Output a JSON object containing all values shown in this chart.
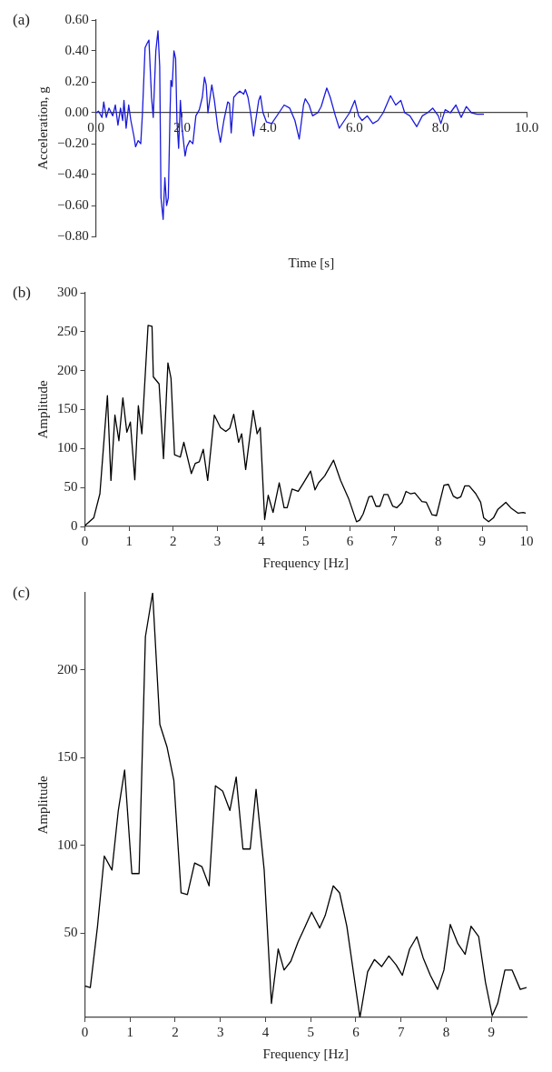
{
  "chart_data": [
    {
      "type": "line",
      "title": "(a)",
      "xlabel": "Time [s]",
      "ylabel": "Acceleration, g",
      "grid": false,
      "legend": false,
      "marker": "none",
      "line_style": "solid",
      "xlim": [
        0,
        10
      ],
      "ylim": [
        -0.8,
        0.6
      ],
      "xticks": [
        {
          "value": 0,
          "label": "0.0"
        },
        {
          "value": 2,
          "label": "2.0"
        },
        {
          "value": 4,
          "label": "4.0"
        },
        {
          "value": 6,
          "label": "6.0"
        },
        {
          "value": 8,
          "label": "8.0"
        },
        {
          "value": 10,
          "label": "10.0"
        }
      ],
      "yticks": [
        {
          "value": -0.8,
          "label": "−0.80"
        },
        {
          "value": -0.6,
          "label": "−0.60"
        },
        {
          "value": -0.4,
          "label": "−0.40"
        },
        {
          "value": -0.2,
          "label": "−0.20"
        },
        {
          "value": 0,
          "label": "0.00"
        },
        {
          "value": 0.2,
          "label": "0.20"
        },
        {
          "value": 0.4,
          "label": "0.40"
        },
        {
          "value": 0.6,
          "label": "0.60"
        }
      ],
      "x": [
        0,
        0.06,
        0.14,
        0.18,
        0.24,
        0.3,
        0.39,
        0.45,
        0.51,
        0.57,
        0.62,
        0.65,
        0.7,
        0.76,
        0.81,
        0.88,
        0.92,
        0.98,
        1.04,
        1.08,
        1.14,
        1.19,
        1.23,
        1.29,
        1.33,
        1.39,
        1.44,
        1.48,
        1.51,
        1.56,
        1.6,
        1.64,
        1.68,
        1.72,
        1.74,
        1.77,
        1.81,
        1.85,
        1.88,
        1.92,
        1.96,
        2.0,
        2.07,
        2.11,
        2.18,
        2.25,
        2.32,
        2.4,
        2.47,
        2.52,
        2.56,
        2.6,
        2.69,
        2.75,
        2.83,
        2.89,
        2.97,
        3.06,
        3.1,
        3.14,
        3.2,
        3.26,
        3.34,
        3.43,
        3.47,
        3.53,
        3.59,
        3.66,
        3.71,
        3.78,
        3.82,
        3.88,
        3.96,
        4.08,
        4.25,
        4.37,
        4.5,
        4.62,
        4.72,
        4.82,
        4.86,
        4.95,
        5.03,
        5.15,
        5.23,
        5.36,
        5.44,
        5.56,
        5.65,
        5.77,
        5.89,
        6.01,
        6.1,
        6.18,
        6.3,
        6.43,
        6.55,
        6.67,
        6.84,
        6.96,
        7.08,
        7.17,
        7.29,
        7.45,
        7.58,
        7.7,
        7.82,
        7.95,
        8.01,
        8.11,
        8.23,
        8.36,
        8.48,
        8.6,
        8.72,
        8.85,
        9.01
      ],
      "series": [
        {
          "color": "#1a1adc",
          "values": [
            0,
            0.01,
            -0.03,
            0.07,
            -0.03,
            0.03,
            -0.02,
            0.05,
            -0.08,
            0.03,
            -0.05,
            0.08,
            -0.1,
            0.05,
            -0.05,
            -0.15,
            -0.22,
            -0.18,
            -0.2,
            0,
            0.42,
            0.45,
            0.47,
            0.1,
            -0.03,
            0.4,
            0.53,
            0.3,
            -0.55,
            -0.69,
            -0.42,
            -0.6,
            -0.55,
            0,
            0.21,
            0.17,
            0.4,
            0.35,
            -0.05,
            -0.23,
            0.08,
            -0.1,
            -0.28,
            -0.22,
            -0.18,
            -0.2,
            -0.02,
            0.02,
            0.1,
            0.23,
            0.18,
            0,
            0.18,
            0.08,
            -0.1,
            -0.19,
            -0.05,
            0.07,
            0.06,
            -0.13,
            0.1,
            0.12,
            0.14,
            0.12,
            0.15,
            0.1,
            0,
            -0.15,
            -0.05,
            0.08,
            0.11,
            0,
            -0.06,
            -0.07,
            0,
            0.05,
            0.03,
            -0.05,
            -0.17,
            0.05,
            0.09,
            0.05,
            -0.02,
            0,
            0.04,
            0.16,
            0.1,
            -0.02,
            -0.1,
            -0.05,
            0,
            0.08,
            -0.02,
            -0.05,
            -0.02,
            -0.07,
            -0.05,
            0,
            0.11,
            0.05,
            0.08,
            0,
            -0.02,
            -0.09,
            -0.02,
            0,
            0.03,
            -0.02,
            -0.07,
            0.02,
            0,
            0.05,
            -0.03,
            0.04,
            0,
            -0.01,
            -0.01
          ]
        }
      ]
    },
    {
      "type": "line",
      "title": "(b)",
      "xlabel": "Frequency [Hz]",
      "ylabel": "Amplitude",
      "grid": false,
      "legend": false,
      "marker": "none",
      "line_style": "solid",
      "xlim": [
        0,
        10
      ],
      "ylim": [
        0,
        300
      ],
      "xticks": [
        0,
        1,
        2,
        3,
        4,
        5,
        6,
        7,
        8,
        9,
        10
      ],
      "yticks": [
        0,
        50,
        100,
        150,
        200,
        250,
        300
      ],
      "x": [
        0,
        0.02,
        0.2,
        0.34,
        0.51,
        0.59,
        0.68,
        0.77,
        0.86,
        0.95,
        1.03,
        1.13,
        1.21,
        1.29,
        1.43,
        1.52,
        1.55,
        1.68,
        1.78,
        1.88,
        1.95,
        2.03,
        2.16,
        2.24,
        2.41,
        2.5,
        2.59,
        2.68,
        2.78,
        2.93,
        3.07,
        3.19,
        3.28,
        3.37,
        3.48,
        3.55,
        3.64,
        3.81,
        3.9,
        3.97,
        4.07,
        4.15,
        4.26,
        4.4,
        4.51,
        4.58,
        4.69,
        4.83,
        4.94,
        5.11,
        5.21,
        5.29,
        5.43,
        5.63,
        5.79,
        5.97,
        6.15,
        6.22,
        6.3,
        6.43,
        6.5,
        6.59,
        6.68,
        6.77,
        6.86,
        6.97,
        7.06,
        7.18,
        7.27,
        7.37,
        7.47,
        7.63,
        7.73,
        7.86,
        7.96,
        8.13,
        8.23,
        8.34,
        8.43,
        8.51,
        8.6,
        8.7,
        8.85,
        8.96,
        9.03,
        9.14,
        9.25,
        9.35,
        9.53,
        9.64,
        9.81,
        9.92,
        9.98
      ],
      "series": [
        {
          "color": "#000000",
          "values": [
            1,
            2,
            11,
            42,
            168,
            59,
            143,
            110,
            165,
            121,
            134,
            60,
            155,
            119,
            258,
            257,
            192,
            183,
            87,
            210,
            190,
            92,
            89,
            108,
            68,
            81,
            83,
            99,
            59,
            143,
            127,
            122,
            126,
            144,
            108,
            119,
            73,
            149,
            119,
            127,
            9,
            40,
            18,
            56,
            24,
            24,
            48,
            45,
            55,
            71,
            47,
            56,
            65,
            85,
            59,
            36,
            6,
            8,
            16,
            38,
            39,
            26,
            26,
            41,
            41,
            26,
            24,
            31,
            45,
            42,
            43,
            32,
            31,
            15,
            14,
            53,
            54,
            39,
            36,
            38,
            52,
            52,
            42,
            31,
            11,
            6,
            11,
            22,
            31,
            24,
            17,
            18,
            17
          ]
        }
      ]
    },
    {
      "type": "line",
      "title": "(c)",
      "xlabel": "Frequency [Hz]",
      "ylabel": "Amplitude",
      "grid": false,
      "legend": false,
      "marker": "none",
      "line_style": "solid",
      "xlim": [
        0,
        9.78
      ],
      "ylim": [
        2,
        244
      ],
      "xticks": [
        0,
        1,
        2,
        3,
        4,
        5,
        6,
        7,
        8,
        9
      ],
      "yticks": [
        50,
        100,
        150,
        200
      ],
      "x": [
        0,
        0.12,
        0.28,
        0.43,
        0.6,
        0.74,
        0.88,
        1.04,
        1.2,
        1.34,
        1.5,
        1.66,
        1.82,
        1.97,
        2.13,
        2.27,
        2.43,
        2.59,
        2.75,
        2.89,
        3.05,
        3.21,
        3.35,
        3.5,
        3.66,
        3.79,
        3.97,
        4.13,
        4.28,
        4.41,
        4.56,
        4.72,
        4.88,
        5.02,
        5.2,
        5.32,
        5.5,
        5.64,
        5.8,
        6.09,
        6.26,
        6.41,
        6.57,
        6.73,
        6.89,
        7.03,
        7.19,
        7.35,
        7.49,
        7.65,
        7.81,
        7.95,
        8.09,
        8.26,
        8.42,
        8.55,
        8.72,
        8.87,
        9.02,
        9.14,
        9.3,
        9.46,
        9.64,
        9.78
      ],
      "series": [
        {
          "color": "#000000",
          "values": [
            20,
            19,
            54,
            94,
            86,
            120,
            143,
            84,
            84,
            219,
            244,
            169,
            156,
            137,
            73,
            72,
            90,
            88,
            77,
            134,
            131,
            120,
            139,
            98,
            98,
            132,
            86,
            10,
            41,
            29,
            34,
            45,
            54,
            62,
            53,
            60,
            77,
            73,
            54,
            2,
            28,
            35,
            31,
            37,
            32,
            26,
            41,
            48,
            36,
            26,
            18,
            29,
            55,
            44,
            38,
            54,
            48,
            22,
            3,
            10,
            29,
            29,
            18,
            19
          ]
        }
      ]
    }
  ]
}
